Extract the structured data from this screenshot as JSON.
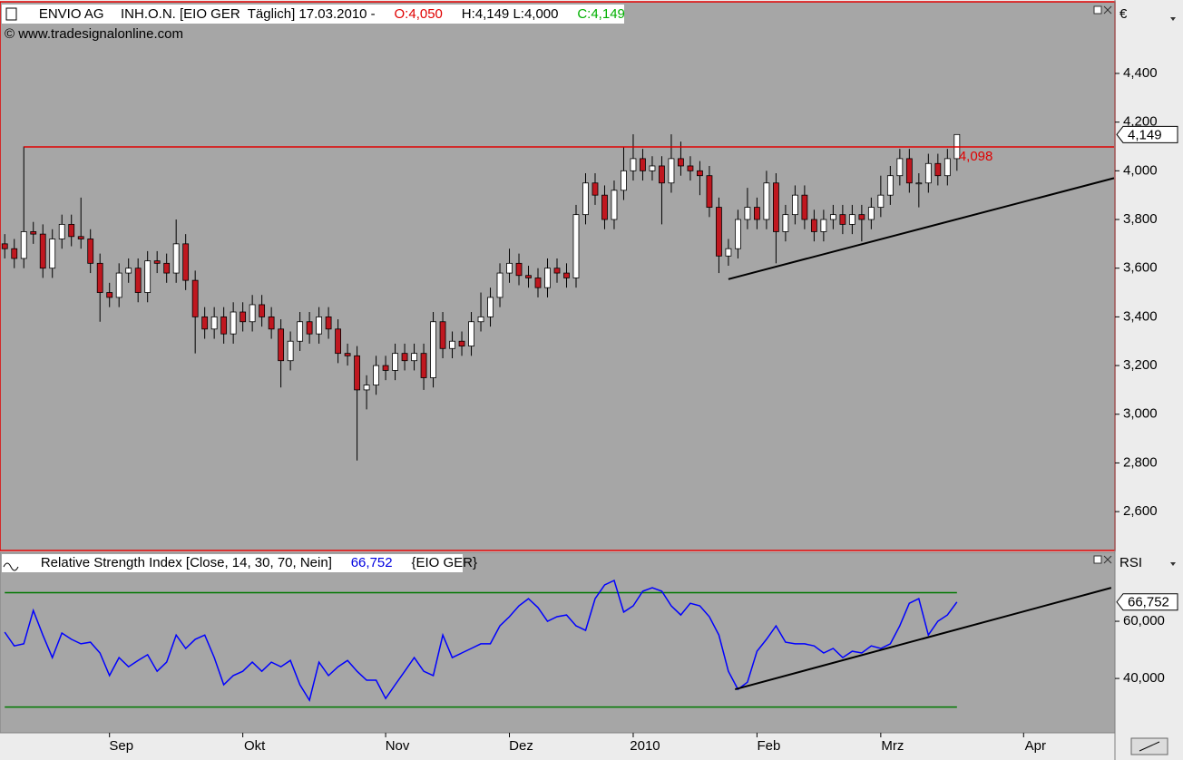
{
  "chart_data": [
    {
      "type": "candlestick",
      "title": "ENVIO AG",
      "instrument": "INH.O.N. [EIO GER  Täglich] 17.03.2010 -",
      "ohlc_labels": [
        {
          "text": "O:4,050",
          "color": "#e00000"
        },
        {
          "text": "H:4,149 L:4,000",
          "color": "#000000"
        },
        {
          "text": "C:4,149",
          "color": "#00b000"
        }
      ],
      "source": "© www.tradesignalonline.com",
      "currency": "€",
      "x": [
        0,
        1,
        2,
        3,
        4,
        5,
        6,
        7,
        8,
        9,
        10,
        11,
        12,
        13,
        14,
        15,
        16,
        17,
        18,
        19,
        20,
        21,
        22,
        23,
        24,
        25,
        26,
        27,
        28,
        29,
        30,
        31,
        32,
        33,
        34,
        35,
        36,
        37,
        38,
        39,
        40,
        41,
        42,
        43,
        44,
        45,
        46,
        47,
        48,
        49,
        50,
        51,
        52,
        53,
        54,
        55,
        56,
        57,
        58,
        59,
        60,
        61,
        62,
        63,
        64,
        65,
        66,
        67,
        68,
        69,
        70,
        71,
        72,
        73,
        74,
        75,
        76,
        77,
        78,
        79,
        80,
        81,
        82,
        83,
        84,
        85,
        86,
        87,
        88,
        89,
        90,
        91,
        92,
        93,
        94,
        95,
        96,
        97,
        98,
        99,
        100
      ],
      "open": [
        3.7,
        3.68,
        3.64,
        3.75,
        3.74,
        3.6,
        3.72,
        3.78,
        3.73,
        3.72,
        3.62,
        3.5,
        3.48,
        3.58,
        3.6,
        3.5,
        3.63,
        3.62,
        3.58,
        3.7,
        3.55,
        3.4,
        3.35,
        3.4,
        3.33,
        3.42,
        3.38,
        3.45,
        3.4,
        3.35,
        3.22,
        3.3,
        3.38,
        3.33,
        3.4,
        3.35,
        3.25,
        3.24,
        3.1,
        3.12,
        3.2,
        3.18,
        3.25,
        3.22,
        3.25,
        3.15,
        3.38,
        3.27,
        3.3,
        3.28,
        3.38,
        3.4,
        3.48,
        3.58,
        3.62,
        3.57,
        3.56,
        3.52,
        3.6,
        3.58,
        3.56,
        3.82,
        3.95,
        3.9,
        3.8,
        3.92,
        4.0,
        4.05,
        4.0,
        4.02,
        3.95,
        4.05,
        4.02,
        4.0,
        3.98,
        3.85,
        3.65,
        3.68,
        3.8,
        3.85,
        3.8,
        3.95,
        3.75,
        3.82,
        3.9,
        3.8,
        3.75,
        3.8,
        3.82,
        3.78,
        3.82,
        3.8,
        3.85,
        3.9,
        3.98,
        4.05,
        3.95,
        3.95,
        4.03,
        3.98,
        4.05
      ],
      "high": [
        3.74,
        3.72,
        4.1,
        3.79,
        3.78,
        3.76,
        3.82,
        3.82,
        3.89,
        3.76,
        3.66,
        3.54,
        3.62,
        3.64,
        3.64,
        3.67,
        3.67,
        3.66,
        3.8,
        3.74,
        3.59,
        3.44,
        3.44,
        3.44,
        3.46,
        3.46,
        3.49,
        3.49,
        3.44,
        3.39,
        3.34,
        3.42,
        3.42,
        3.44,
        3.44,
        3.39,
        3.29,
        3.28,
        3.16,
        3.24,
        3.24,
        3.29,
        3.29,
        3.29,
        3.29,
        3.42,
        3.42,
        3.34,
        3.34,
        3.42,
        3.5,
        3.52,
        3.62,
        3.68,
        3.66,
        3.61,
        3.6,
        3.64,
        3.64,
        3.62,
        3.86,
        3.99,
        3.99,
        3.94,
        3.96,
        4.1,
        4.15,
        4.09,
        4.06,
        4.06,
        4.15,
        4.12,
        4.06,
        4.04,
        4.02,
        3.89,
        3.72,
        3.84,
        3.93,
        3.89,
        4.0,
        3.99,
        3.86,
        3.94,
        3.94,
        3.84,
        3.84,
        3.86,
        3.86,
        3.86,
        3.86,
        3.89,
        3.98,
        4.02,
        4.09,
        4.09,
        3.99,
        4.07,
        4.07,
        4.09,
        4.149
      ],
      "low": [
        3.64,
        3.6,
        3.6,
        3.7,
        3.56,
        3.56,
        3.68,
        3.69,
        3.68,
        3.58,
        3.38,
        3.44,
        3.44,
        3.54,
        3.46,
        3.46,
        3.58,
        3.54,
        3.54,
        3.51,
        3.25,
        3.31,
        3.31,
        3.29,
        3.29,
        3.34,
        3.34,
        3.36,
        3.31,
        3.11,
        3.18,
        3.26,
        3.29,
        3.29,
        3.31,
        3.21,
        3.2,
        2.81,
        3.02,
        3.08,
        3.14,
        3.14,
        3.18,
        3.18,
        3.1,
        3.11,
        3.23,
        3.23,
        3.24,
        3.24,
        3.34,
        3.36,
        3.44,
        3.54,
        3.53,
        3.52,
        3.48,
        3.48,
        3.54,
        3.52,
        3.52,
        3.78,
        3.86,
        3.76,
        3.76,
        3.88,
        3.96,
        3.96,
        3.96,
        3.78,
        3.91,
        3.98,
        3.96,
        3.9,
        3.81,
        3.58,
        3.61,
        3.64,
        3.76,
        3.76,
        3.76,
        3.62,
        3.71,
        3.78,
        3.76,
        3.71,
        3.71,
        3.76,
        3.74,
        3.74,
        3.71,
        3.76,
        3.81,
        3.86,
        3.94,
        3.91,
        3.85,
        3.91,
        3.94,
        3.94,
        4.0
      ],
      "close": [
        3.68,
        3.64,
        3.75,
        3.74,
        3.6,
        3.72,
        3.78,
        3.73,
        3.72,
        3.62,
        3.5,
        3.48,
        3.58,
        3.6,
        3.5,
        3.63,
        3.62,
        3.58,
        3.7,
        3.55,
        3.4,
        3.35,
        3.4,
        3.33,
        3.42,
        3.38,
        3.45,
        3.4,
        3.35,
        3.22,
        3.3,
        3.38,
        3.33,
        3.4,
        3.35,
        3.25,
        3.24,
        3.1,
        3.12,
        3.2,
        3.18,
        3.25,
        3.22,
        3.25,
        3.15,
        3.38,
        3.27,
        3.3,
        3.28,
        3.38,
        3.4,
        3.48,
        3.58,
        3.62,
        3.57,
        3.56,
        3.52,
        3.6,
        3.58,
        3.56,
        3.82,
        3.95,
        3.9,
        3.8,
        3.92,
        4.0,
        4.05,
        4.0,
        4.02,
        3.95,
        4.05,
        4.02,
        4.0,
        3.98,
        3.85,
        3.65,
        3.68,
        3.8,
        3.85,
        3.8,
        3.95,
        3.75,
        3.82,
        3.9,
        3.8,
        3.75,
        3.8,
        3.82,
        3.78,
        3.82,
        3.8,
        3.85,
        3.9,
        3.98,
        4.05,
        3.95,
        3.95,
        4.03,
        3.98,
        4.05,
        4.149
      ],
      "up_color": "#ffffff",
      "down_color": "#c0171f",
      "xlim": [
        -0.5,
        116.5
      ],
      "ylim": [
        2.444,
        4.683
      ],
      "yticks": [
        {
          "value": 2.6,
          "label": "2,600"
        },
        {
          "value": 2.8,
          "label": "2,800"
        },
        {
          "value": 3.0,
          "label": "3,000"
        },
        {
          "value": 3.2,
          "label": "3,200"
        },
        {
          "value": 3.4,
          "label": "3,400"
        },
        {
          "value": 3.6,
          "label": "3,600"
        },
        {
          "value": 3.8,
          "label": "3,800"
        },
        {
          "value": 4.0,
          "label": "4,000"
        },
        {
          "value": 4.2,
          "label": "4,200"
        },
        {
          "value": 4.4,
          "label": "4,400"
        }
      ],
      "resistance": {
        "x": [
          2,
          116.5
        ],
        "value": 4.098,
        "label": "4,098",
        "color": "#e00000"
      },
      "trendline": {
        "x": [
          76,
          116.5
        ],
        "y": [
          3.555,
          3.97
        ],
        "color": "#000000"
      },
      "last_value": {
        "value": 4.149,
        "label": "4,149"
      }
    },
    {
      "type": "line",
      "title": "Relative Strength Index [Close, 14, 30, 70, Nein]",
      "title_value": {
        "text": "66,752",
        "color": "#0000e0"
      },
      "title_suffix": "{EIO GER}",
      "axis_title": "RSI",
      "x": [
        0,
        1,
        2,
        3,
        4,
        5,
        6,
        7,
        8,
        9,
        10,
        11,
        12,
        13,
        14,
        15,
        16,
        17,
        18,
        19,
        20,
        21,
        22,
        23,
        24,
        25,
        26,
        27,
        28,
        29,
        30,
        31,
        32,
        33,
        34,
        35,
        36,
        37,
        38,
        39,
        40,
        41,
        42,
        43,
        44,
        45,
        46,
        47,
        48,
        49,
        50,
        51,
        52,
        53,
        54,
        55,
        56,
        57,
        58,
        59,
        60,
        61,
        62,
        63,
        64,
        65,
        66,
        67,
        68,
        69,
        70,
        71,
        72,
        73,
        74,
        75,
        76,
        77,
        78,
        79,
        80,
        81,
        82,
        83,
        84,
        85,
        86,
        87,
        88,
        89,
        90,
        91,
        92,
        93,
        94,
        95,
        96,
        97,
        98,
        99,
        100
      ],
      "values": [
        56.2,
        51.4,
        52.1,
        63.8,
        55.2,
        47.3,
        55.9,
        53.7,
        52.1,
        52.7,
        48.9,
        41.0,
        47.3,
        44.1,
        46.3,
        48.3,
        42.5,
        45.7,
        55.2,
        50.5,
        53.7,
        55.2,
        47.3,
        37.8,
        41.0,
        42.5,
        45.7,
        42.5,
        45.7,
        44.1,
        46.3,
        37.8,
        32.4,
        45.7,
        41.0,
        44.1,
        46.3,
        42.5,
        39.4,
        39.4,
        33.0,
        37.8,
        42.5,
        47.3,
        42.5,
        41.0,
        55.2,
        47.3,
        48.9,
        50.5,
        52.1,
        52.1,
        58.4,
        61.6,
        65.4,
        67.9,
        64.8,
        60.0,
        61.6,
        62.2,
        58.4,
        56.8,
        67.9,
        72.7,
        74.3,
        63.2,
        65.4,
        70.5,
        71.7,
        70.5,
        65.4,
        62.2,
        66.3,
        65.4,
        61.6,
        55.2,
        42.5,
        36.2,
        38.7,
        49.5,
        53.7,
        58.4,
        52.7,
        52.1,
        52.1,
        51.4,
        48.9,
        50.5,
        47.3,
        49.5,
        48.9,
        51.4,
        50.5,
        52.1,
        58.4,
        66.3,
        67.9,
        55.2,
        60.0,
        62.2,
        66.752
      ],
      "color": "#0000ff",
      "levels": [
        {
          "value": 70,
          "color": "#007800"
        },
        {
          "value": 30,
          "color": "#007800"
        }
      ],
      "trendline": {
        "x": [
          76.7,
          116.2
        ],
        "y": [
          36.2,
          71.7
        ],
        "color": "#000000"
      },
      "last_value": {
        "value": 66.752,
        "label": "66,752"
      },
      "xlim": [
        -0.5,
        116.5
      ],
      "ylim": [
        21,
        83.8
      ],
      "yticks": [
        {
          "value": 40,
          "label": "40,000"
        },
        {
          "value": 60,
          "label": "60,000"
        }
      ],
      "xticks": [
        {
          "value": 11,
          "label": "Sep"
        },
        {
          "value": 25,
          "label": "Okt"
        },
        {
          "value": 40,
          "label": "Nov"
        },
        {
          "value": 53,
          "label": "Dez"
        },
        {
          "value": 66,
          "label": "2010"
        },
        {
          "value": 79,
          "label": "Feb"
        },
        {
          "value": 92,
          "label": "Mrz"
        },
        {
          "value": 107,
          "label": "Apr"
        }
      ]
    }
  ]
}
